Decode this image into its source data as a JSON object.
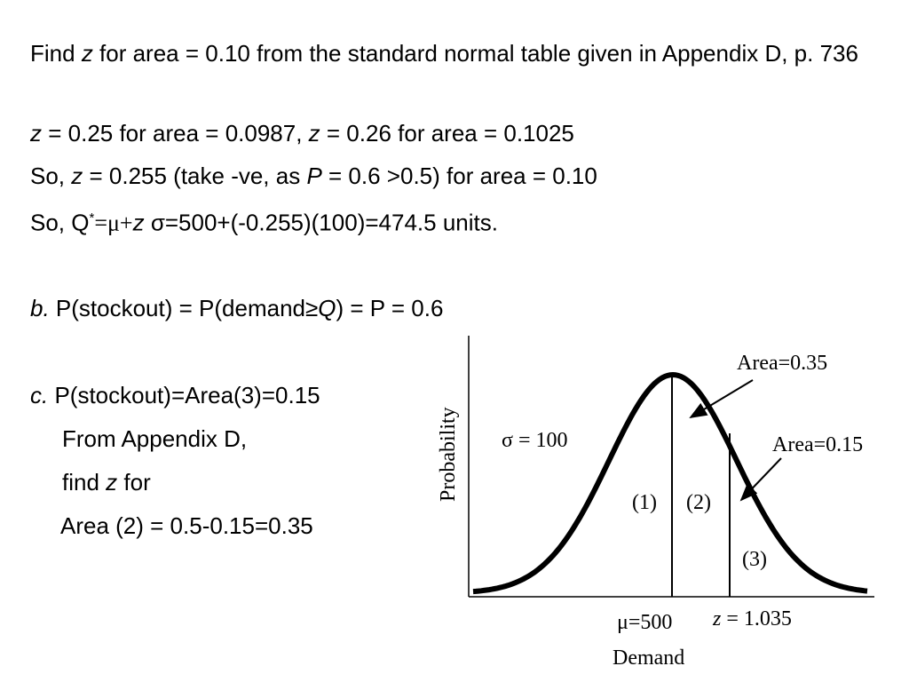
{
  "lines": [
    [
      "Find ",
      "z",
      " for area = 0.10 from the standard normal table given in Appendix D, p. 736"
    ],
    [
      "z",
      " = 0.25 for area = 0.0987, ",
      "z",
      " = 0.26 for area = 0.1025"
    ],
    [
      "So, ",
      "z",
      " = 0.255 (take -ve, as ",
      "P",
      " = 0.6 >0.5) for area = 0.10"
    ],
    [
      "So, Q",
      "*",
      "=μ+",
      "z",
      " σ=500+(-0.255)(100)=474.5 units."
    ],
    [
      "b.",
      " P(stockout) = P(demand≥",
      "Q",
      ") = P = 0.6"
    ],
    [
      "c.",
      " P(stockout)=Area(3)=0.15"
    ],
    [
      "From Appendix D,"
    ],
    [
      "find ",
      "z",
      " for"
    ],
    [
      "Area (2) = 0.5-0.15=0.35"
    ]
  ],
  "diagram": {
    "y_label": "Probability",
    "sigma": "σ = 100",
    "area_a": "Area=0.35",
    "area_b": "Area=0.15",
    "region_1": "(1)",
    "region_2": "(2)",
    "region_3": "(3)",
    "mean": "μ=500",
    "z_label": [
      "z",
      " = 1.035"
    ],
    "x_label": "Demand"
  }
}
